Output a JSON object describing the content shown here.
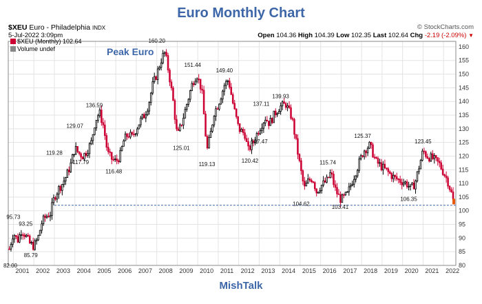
{
  "header": {
    "title": "Euro Monthly Chart",
    "symbol": "$XEU",
    "name": "Euro - Philadelphia",
    "exchange": "INDX",
    "datetime": "5-Jul-2022 3:09pm",
    "brand": "© StockCharts.com",
    "open_label": "Open",
    "open": "104.36",
    "high_label": "High",
    "high": "104.39",
    "low_label": "Low",
    "low": "102.35",
    "last_label": "Last",
    "last": "102.64",
    "chg_label": "Chg",
    "chg": "-2.19 (-2.09%)"
  },
  "legend": {
    "series_label": "$XEU (Monthly) 102.64",
    "volume_label": "Volume undef"
  },
  "annotations": {
    "peak_label": "Peak Euro",
    "footer": "MishTalk"
  },
  "colors": {
    "up": "#000000",
    "down": "#cc0033",
    "grid": "#e3e3e3",
    "title": "#3c66a8",
    "reference_line": "#3c66a8"
  },
  "chart_data": {
    "type": "line",
    "style": "candlestick-monthly",
    "ylim": [
      80,
      162
    ],
    "xlim": [
      2000.75,
      2022.6
    ],
    "x_tick_labels": [
      "2001",
      "2002",
      "2003",
      "2004",
      "2005",
      "2006",
      "2007",
      "2008",
      "2009",
      "2010",
      "2011",
      "2012",
      "2013",
      "2014",
      "2015",
      "2016",
      "2017",
      "2018",
      "2019",
      "2020",
      "2021",
      "2022"
    ],
    "y_ticks": [
      80,
      85,
      90,
      95,
      100,
      105,
      110,
      115,
      120,
      125,
      130,
      135,
      140,
      145,
      150,
      155,
      160
    ],
    "y_axis_side": "right",
    "grid": true,
    "reference_line": 102.0,
    "series": [
      {
        "x": [
          2000.8,
          2001.0,
          2001.2,
          2001.4,
          2001.6,
          2001.8,
          2002.0,
          2002.2,
          2002.4,
          2002.6,
          2002.8,
          2003.0,
          2003.2,
          2003.4,
          2003.6,
          2003.8,
          2004.0,
          2004.2,
          2004.4,
          2004.6,
          2004.8,
          2005.0,
          2005.2,
          2005.4,
          2005.6,
          2005.8,
          2006.0,
          2006.2,
          2006.4,
          2006.6,
          2006.8,
          2007.0,
          2007.2,
          2007.4,
          2007.6,
          2007.8,
          2008.0,
          2008.25,
          2008.4,
          2008.6,
          2008.8,
          2009.0,
          2009.25,
          2009.5,
          2009.75,
          2009.95,
          2010.2,
          2010.45,
          2010.6,
          2010.8,
          2011.0,
          2011.3,
          2011.5,
          2011.75,
          2012.0,
          2012.3,
          2012.45,
          2012.7,
          2013.0,
          2013.3,
          2013.5,
          2013.8,
          2014.0,
          2014.3,
          2014.6,
          2014.8,
          2015.0,
          2015.2,
          2015.4,
          2015.6,
          2015.8,
          2016.0,
          2016.3,
          2016.5,
          2016.7,
          2016.9,
          2017.0,
          2017.3,
          2017.6,
          2017.9,
          2018.1,
          2018.4,
          2018.7,
          2019.0,
          2019.3,
          2019.6,
          2019.9,
          2020.2,
          2020.4,
          2020.6,
          2020.8,
          2021.0,
          2021.2,
          2021.5,
          2021.8,
          2022.0,
          2022.2,
          2022.4,
          2022.5
        ],
        "y": [
          86,
          92,
          89,
          93,
          91,
          88,
          87,
          90,
          96,
          98,
          99,
          105,
          108,
          110,
          113,
          117,
          123,
          121,
          120,
          122,
          125,
          133,
          136,
          131,
          121,
          119,
          118,
          120,
          126,
          128,
          127,
          130,
          133,
          135,
          139,
          146,
          150,
          156,
          158,
          150,
          140,
          127,
          133,
          140,
          147,
          150,
          144,
          122,
          127,
          136,
          139,
          146,
          148,
          138,
          130,
          128,
          122,
          125,
          130,
          134,
          132,
          136,
          138,
          139,
          134,
          125,
          116,
          108,
          111,
          112,
          107,
          109,
          111,
          114,
          108,
          105,
          104,
          106,
          112,
          118,
          122,
          124,
          118,
          116,
          114,
          112,
          111,
          110,
          108,
          110,
          116,
          122,
          120,
          119,
          117,
          114,
          111,
          106,
          102.64
        ],
        "values_note": "monthly closes"
      }
    ],
    "labels": [
      {
        "x": 2000.85,
        "y": 82.0,
        "text": "82.00",
        "pos": "below"
      },
      {
        "x": 2001.0,
        "y": 95.73,
        "text": "95.73",
        "pos": "above"
      },
      {
        "x": 2001.6,
        "y": 93.25,
        "text": "93.25",
        "pos": "above"
      },
      {
        "x": 2001.85,
        "y": 85.79,
        "text": "85.79",
        "pos": "below"
      },
      {
        "x": 2003.0,
        "y": 119.28,
        "text": "119.28",
        "pos": "above"
      },
      {
        "x": 2003.75,
        "y": 117.79,
        "text": "117.79",
        "pos": "right"
      },
      {
        "x": 2004.0,
        "y": 129.07,
        "text": "129.07",
        "pos": "above"
      },
      {
        "x": 2004.95,
        "y": 136.59,
        "text": "136.59",
        "pos": "above"
      },
      {
        "x": 2005.9,
        "y": 116.48,
        "text": "116.48",
        "pos": "below"
      },
      {
        "x": 2008.0,
        "y": 160.2,
        "text": "160.20",
        "pos": "above"
      },
      {
        "x": 2009.2,
        "y": 125.01,
        "text": "125.01",
        "pos": "below"
      },
      {
        "x": 2009.75,
        "y": 151.44,
        "text": "151.44",
        "pos": "above"
      },
      {
        "x": 2010.45,
        "y": 119.13,
        "text": "119.13",
        "pos": "below"
      },
      {
        "x": 2011.3,
        "y": 149.4,
        "text": "149.40",
        "pos": "above"
      },
      {
        "x": 2012.55,
        "y": 120.42,
        "text": "120.42",
        "pos": "below"
      },
      {
        "x": 2013.0,
        "y": 127.47,
        "text": "127.47",
        "pos": "below"
      },
      {
        "x": 2013.1,
        "y": 137.11,
        "text": "137.11",
        "pos": "above"
      },
      {
        "x": 2014.05,
        "y": 139.93,
        "text": "139.93",
        "pos": "above"
      },
      {
        "x": 2015.05,
        "y": 104.62,
        "text": "104.62",
        "pos": "below"
      },
      {
        "x": 2016.35,
        "y": 115.74,
        "text": "115.74",
        "pos": "above"
      },
      {
        "x": 2016.95,
        "y": 103.41,
        "text": "103.41",
        "pos": "below"
      },
      {
        "x": 2018.05,
        "y": 125.37,
        "text": "125.37",
        "pos": "above"
      },
      {
        "x": 2020.3,
        "y": 106.35,
        "text": "106.35",
        "pos": "below"
      },
      {
        "x": 2021.0,
        "y": 123.45,
        "text": "123.45",
        "pos": "above"
      }
    ]
  }
}
